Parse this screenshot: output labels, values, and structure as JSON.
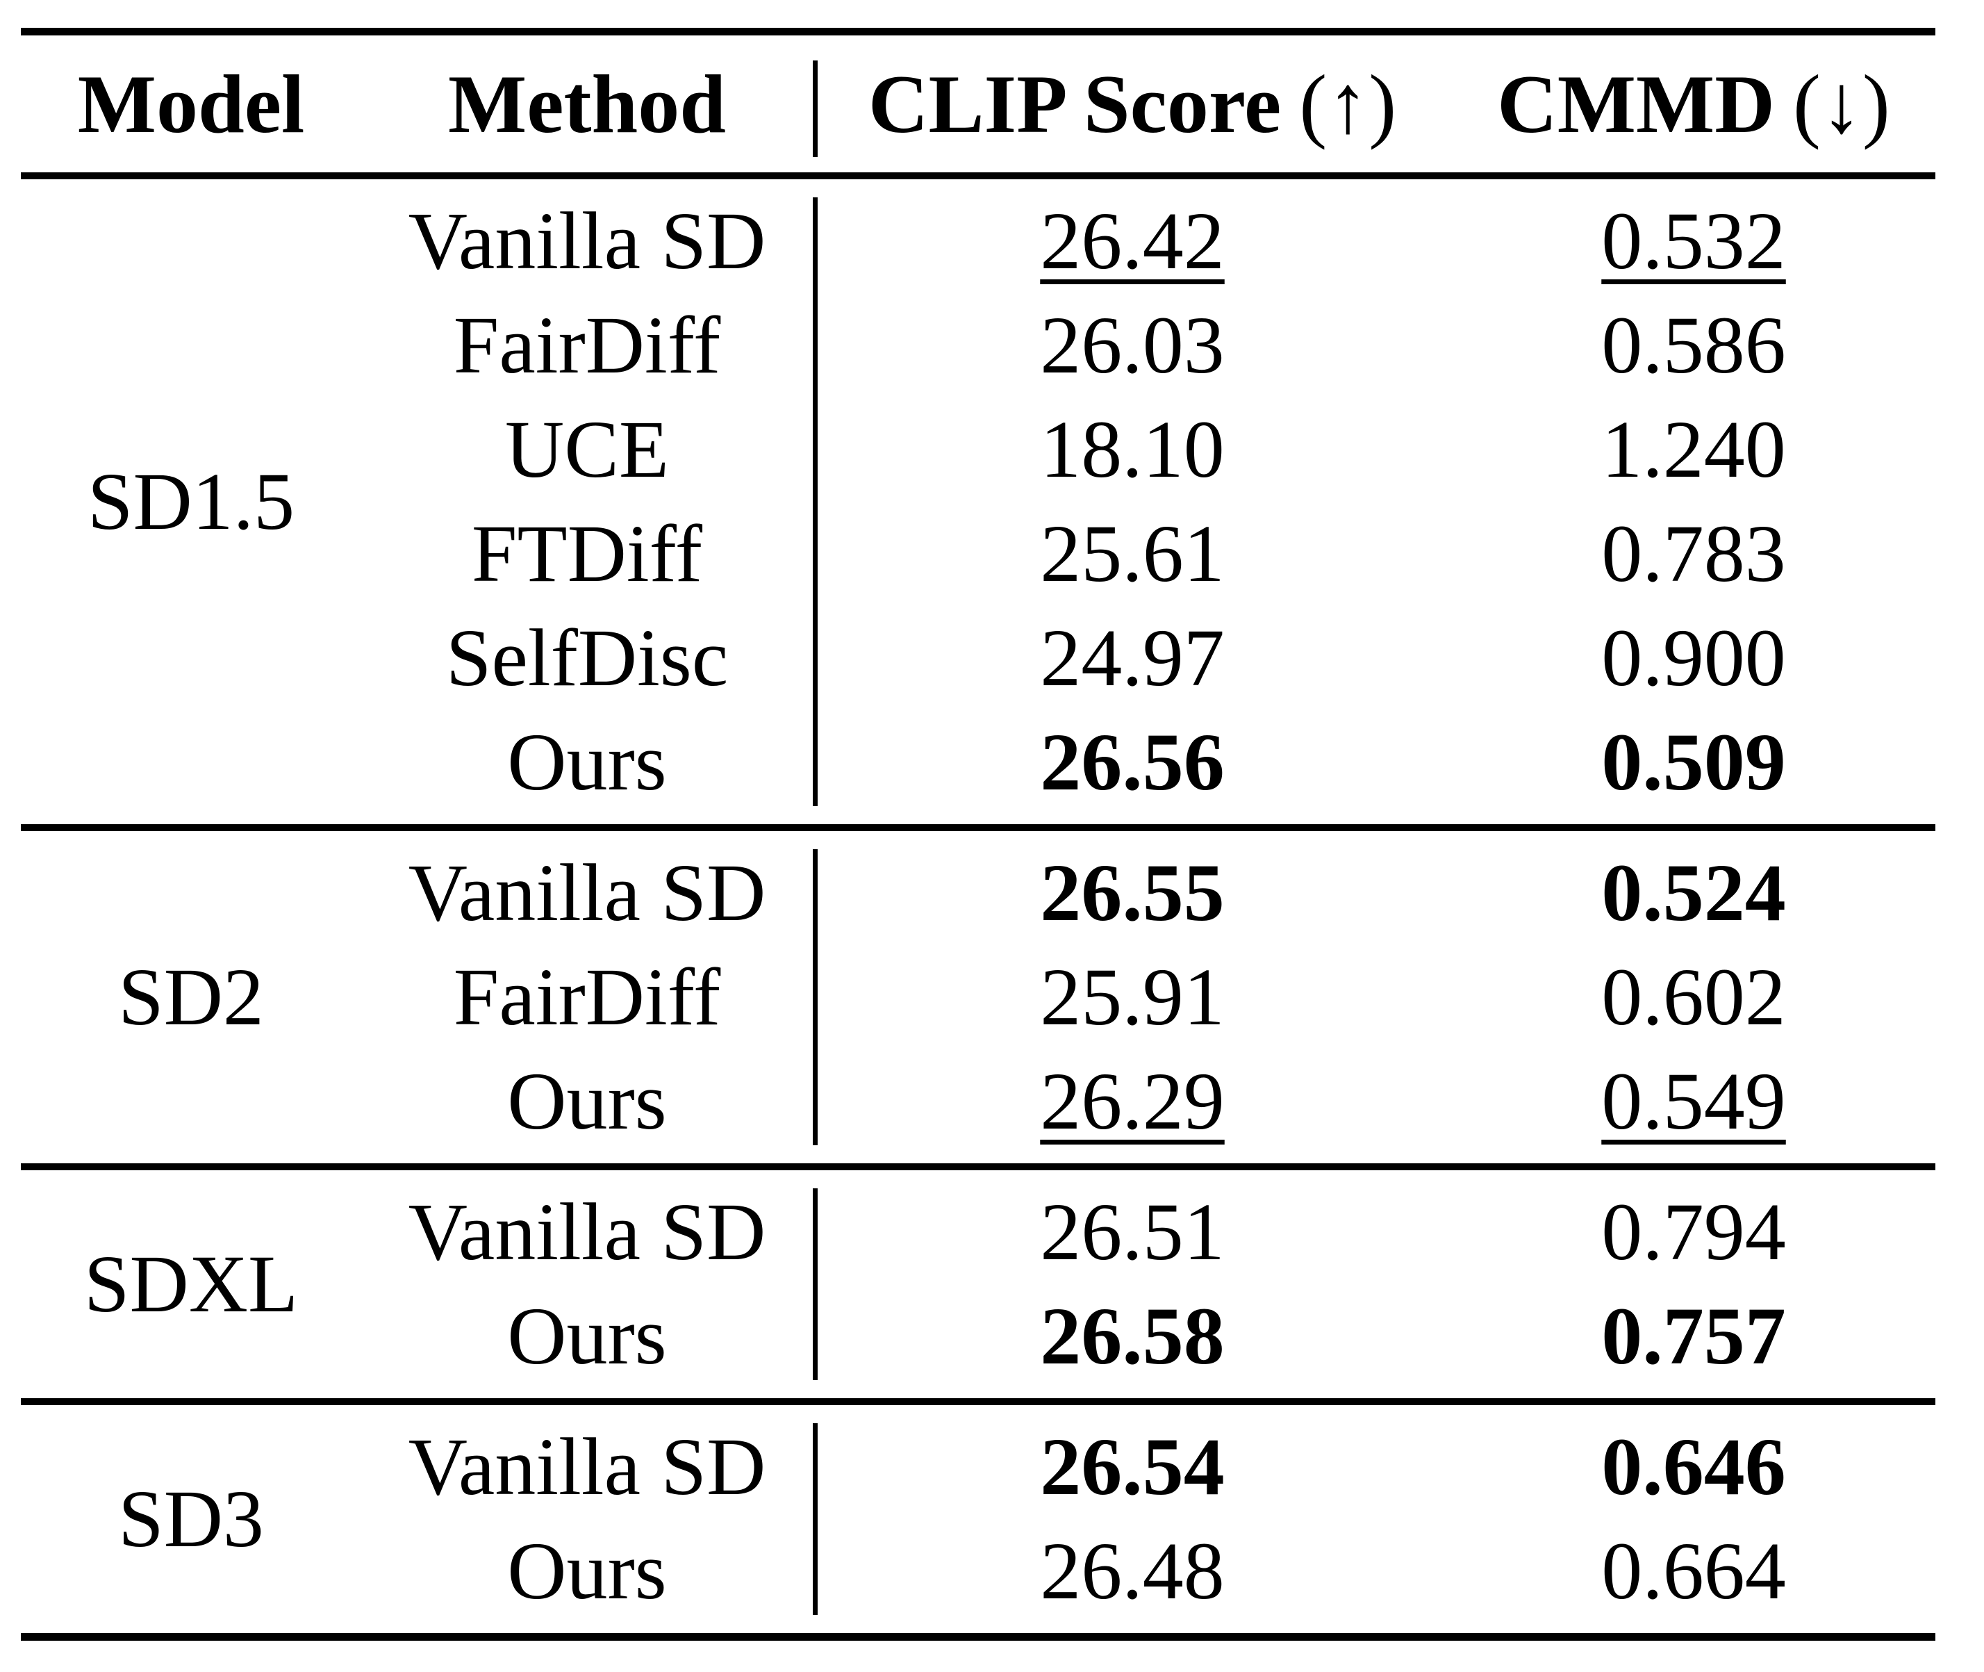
{
  "page": {
    "background": "#ffffff",
    "text_color": "#000000",
    "rule_color": "#000000"
  },
  "table": {
    "headers": {
      "model": "Model",
      "method": "Method",
      "clip": "CLIP Score",
      "clip_arrow": "(↑)",
      "cmmd": "CMMD",
      "cmmd_arrow": "(↓)"
    },
    "groups": [
      {
        "model": "SD1.5",
        "rows": [
          {
            "method": "Vanilla SD",
            "clip": "26.42",
            "clip_style": "underline",
            "cmmd": "0.532",
            "cmmd_style": "underline"
          },
          {
            "method": "FairDiff",
            "clip": "26.03",
            "clip_style": "normal",
            "cmmd": "0.586",
            "cmmd_style": "normal"
          },
          {
            "method": "UCE",
            "clip": "18.10",
            "clip_style": "normal",
            "cmmd": "1.240",
            "cmmd_style": "normal"
          },
          {
            "method": "FTDiff",
            "clip": "25.61",
            "clip_style": "normal",
            "cmmd": "0.783",
            "cmmd_style": "normal"
          },
          {
            "method": "SelfDisc",
            "clip": "24.97",
            "clip_style": "normal",
            "cmmd": "0.900",
            "cmmd_style": "normal"
          },
          {
            "method": "Ours",
            "clip": "26.56",
            "clip_style": "bold",
            "cmmd": "0.509",
            "cmmd_style": "bold"
          }
        ]
      },
      {
        "model": "SD2",
        "rows": [
          {
            "method": "Vanilla SD",
            "clip": "26.55",
            "clip_style": "bold",
            "cmmd": "0.524",
            "cmmd_style": "bold"
          },
          {
            "method": "FairDiff",
            "clip": "25.91",
            "clip_style": "normal",
            "cmmd": "0.602",
            "cmmd_style": "normal"
          },
          {
            "method": "Ours",
            "clip": "26.29",
            "clip_style": "underline",
            "cmmd": "0.549",
            "cmmd_style": "underline"
          }
        ]
      },
      {
        "model": "SDXL",
        "rows": [
          {
            "method": "Vanilla SD",
            "clip": "26.51",
            "clip_style": "normal",
            "cmmd": "0.794",
            "cmmd_style": "normal"
          },
          {
            "method": "Ours",
            "clip": "26.58",
            "clip_style": "bold",
            "cmmd": "0.757",
            "cmmd_style": "bold"
          }
        ]
      },
      {
        "model": "SD3",
        "rows": [
          {
            "method": "Vanilla SD",
            "clip": "26.54",
            "clip_style": "bold",
            "cmmd": "0.646",
            "cmmd_style": "bold"
          },
          {
            "method": "Ours",
            "clip": "26.48",
            "clip_style": "normal",
            "cmmd": "0.664",
            "cmmd_style": "normal"
          }
        ]
      }
    ]
  }
}
